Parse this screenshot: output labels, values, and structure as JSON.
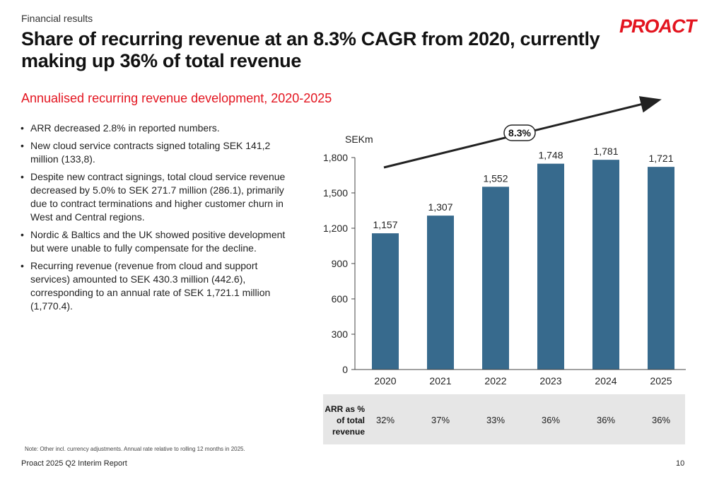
{
  "header": {
    "section": "Financial results",
    "title": "Share of recurring revenue at an 8.3% CAGR from 2020, currently making up 36% of total revenue",
    "logo": "PROACT"
  },
  "subtitle": "Annualised recurring revenue development, 2020-2025",
  "bullets": [
    "ARR decreased 2.8% in reported numbers.",
    "New cloud service contracts signed totaling SEK 141,2 million (133,8).",
    "Despite new contract signings, total cloud service revenue decreased by 5.0% to SEK 271.7 million (286.1), primarily due to contract terminations and higher customer churn in West and Central regions.",
    "Nordic & Baltics and the UK showed positive development but were unable to fully compensate for the decline.",
    "Recurring revenue (revenue from cloud and support services) amounted to SEK 430.3 million (442.6), corresponding to an annual rate of SEK 1,721.1 million (1,770.4)."
  ],
  "chart_data": {
    "type": "bar",
    "unit_label": "SEKm",
    "categories": [
      "2020",
      "2021",
      "2022",
      "2023",
      "2024",
      "2025"
    ],
    "values": [
      1157,
      1307,
      1552,
      1748,
      1781,
      1721
    ],
    "value_labels": [
      "1,157",
      "1,307",
      "1,552",
      "1,748",
      "1,781",
      "1,721"
    ],
    "yticks": [
      0,
      300,
      600,
      900,
      1200,
      1500,
      1800
    ],
    "ytick_labels": [
      "0",
      "300",
      "600",
      "900",
      "1,200",
      "1,500",
      "1,800"
    ],
    "ylim": [
      0,
      1800
    ],
    "bar_color": "#376a8d",
    "grid": false,
    "annotation": "8.3%"
  },
  "arr_share": {
    "label": "ARR as % of total revenue",
    "values": [
      "32%",
      "37%",
      "33%",
      "36%",
      "36%",
      "36%"
    ]
  },
  "note": "Note: Other incl. currency adjustments. Annual rate relative to rolling 12 months in 2025.",
  "footer": {
    "report": "Proact 2025 Q2 Interim Report",
    "page": "10"
  },
  "colors": {
    "accent": "#e3141f",
    "bar": "#376a8d",
    "table_bg": "#e6e6e6"
  }
}
